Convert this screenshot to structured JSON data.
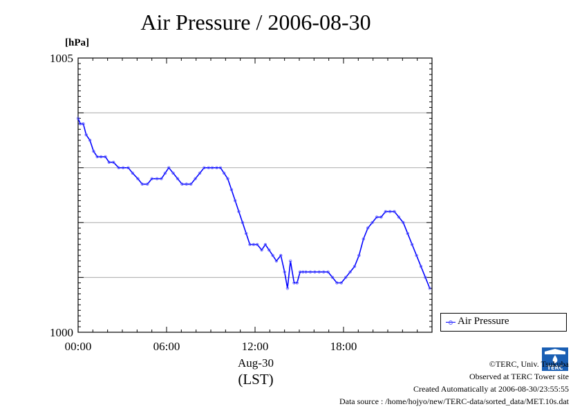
{
  "chart_data": {
    "type": "line",
    "title": "Air Pressure / 2006-08-30",
    "ylabel": "[hPa]",
    "ylim": [
      1000,
      1005
    ],
    "y_ticks": [
      "1005",
      "1000"
    ],
    "y_gridlines": [
      1001,
      1002,
      1003,
      1004
    ],
    "xlim": [
      0,
      24
    ],
    "x_tick_labels": [
      "00:00",
      "06:00",
      "12:00",
      "18:00"
    ],
    "x_ticks_hours": [
      0,
      6,
      12,
      18
    ],
    "x_date_label": "Aug-30",
    "x_unit_label": "(LST)",
    "grid": "horizontal",
    "legend_position": "right",
    "series": [
      {
        "name": "Air Pressure",
        "color": "#0000ff",
        "x": [
          0,
          0.15,
          0.35,
          0.55,
          0.8,
          1.05,
          1.3,
          1.55,
          1.85,
          2.1,
          2.4,
          2.75,
          3.05,
          3.4,
          3.7,
          4.05,
          4.35,
          4.7,
          5.0,
          5.35,
          5.65,
          5.9,
          6.15,
          6.45,
          6.75,
          7.05,
          7.35,
          7.65,
          7.95,
          8.25,
          8.55,
          8.85,
          9.1,
          9.4,
          9.65,
          9.9,
          10.15,
          10.4,
          10.65,
          10.9,
          11.15,
          11.4,
          11.65,
          11.9,
          12.15,
          12.45,
          12.7,
          12.95,
          13.2,
          13.45,
          13.75,
          14.0,
          14.2,
          14.4,
          14.65,
          14.85,
          15.05,
          15.25,
          15.45,
          15.75,
          16.05,
          16.35,
          16.65,
          16.95,
          17.25,
          17.55,
          17.85,
          18.15,
          18.45,
          18.75,
          19.05,
          19.35,
          19.65,
          19.95,
          20.25,
          20.55,
          20.85,
          21.15,
          21.45,
          21.75,
          22.05,
          22.35,
          22.65,
          22.95,
          23.25,
          23.55,
          23.85
        ],
        "values": [
          1003.9,
          1003.8,
          1003.8,
          1003.6,
          1003.5,
          1003.3,
          1003.2,
          1003.2,
          1003.2,
          1003.1,
          1003.1,
          1003.0,
          1003.0,
          1003.0,
          1002.9,
          1002.8,
          1002.7,
          1002.7,
          1002.8,
          1002.8,
          1002.8,
          1002.9,
          1003.0,
          1002.9,
          1002.8,
          1002.7,
          1002.7,
          1002.7,
          1002.8,
          1002.9,
          1003.0,
          1003.0,
          1003.0,
          1003.0,
          1003.0,
          1002.9,
          1002.8,
          1002.6,
          1002.4,
          1002.2,
          1002.0,
          1001.8,
          1001.6,
          1001.6,
          1001.6,
          1001.5,
          1001.6,
          1001.5,
          1001.4,
          1001.3,
          1001.4,
          1001.1,
          1000.8,
          1001.3,
          1000.9,
          1000.9,
          1001.1,
          1001.1,
          1001.1,
          1001.1,
          1001.1,
          1001.1,
          1001.1,
          1001.1,
          1001.0,
          1000.9,
          1000.9,
          1001.0,
          1001.1,
          1001.2,
          1001.4,
          1001.7,
          1001.9,
          1002.0,
          1002.1,
          1002.1,
          1002.2,
          1002.2,
          1002.2,
          1002.1,
          1002.0,
          1001.8,
          1001.6,
          1001.4,
          1001.2,
          1001.0,
          1000.8
        ]
      }
    ]
  },
  "credits": {
    "line1": "©TERC, Univ. Tsukuba",
    "line2": "Observed at TERC Tower site",
    "line3": "Created Automatically at 2006-08-30/23:55:55",
    "line4": "Data source : /home/hojyo/new/TERC-data/sorted_data/MET.10s.dat"
  },
  "logo_text": "TERC"
}
